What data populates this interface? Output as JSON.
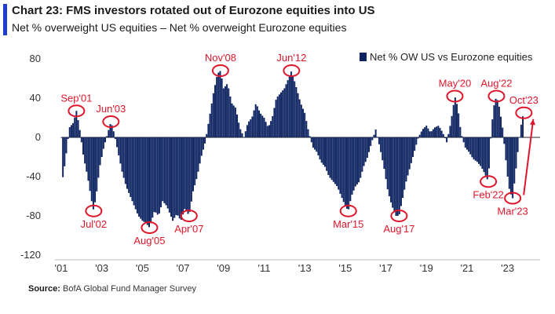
{
  "header": {
    "title": "Chart 23: FMS investors rotated out of Eurozone equities into US",
    "subtitle": "Net % overweight US equities – Net % overweight Eurozone equities"
  },
  "footer": {
    "source_label": "Source:",
    "source_text": "BofA Global Fund Manager Survey"
  },
  "colors": {
    "bar": "#0d2461",
    "accent": "#1f3ecf",
    "annotation": "#e0162b"
  },
  "chart_data": {
    "type": "bar",
    "legend": {
      "label": "Net % OW US vs Eurozone equities",
      "position": "top-right"
    },
    "y_ticks": [
      80,
      40,
      0,
      -40,
      -80,
      -120
    ],
    "ylim": [
      -120,
      80
    ],
    "xlim": [
      2001.0,
      2024.6
    ],
    "x_ticks": [
      {
        "label": "'01",
        "year": 2001
      },
      {
        "label": "'03",
        "year": 2003
      },
      {
        "label": "'05",
        "year": 2005
      },
      {
        "label": "'07",
        "year": 2007
      },
      {
        "label": "'09",
        "year": 2009
      },
      {
        "label": "'11",
        "year": 2011
      },
      {
        "label": "'13",
        "year": 2013
      },
      {
        "label": "'15",
        "year": 2015
      },
      {
        "label": "'17",
        "year": 2017
      },
      {
        "label": "'19",
        "year": 2019
      },
      {
        "label": "'21",
        "year": 2021
      },
      {
        "label": "'23",
        "year": 2023
      }
    ],
    "anchors": [
      [
        2001.0,
        0
      ],
      [
        2001.05,
        -45
      ],
      [
        2001.2,
        -25
      ],
      [
        2001.4,
        10
      ],
      [
        2001.6,
        15
      ],
      [
        2001.75,
        27
      ],
      [
        2001.9,
        10
      ],
      [
        2002.1,
        -20
      ],
      [
        2002.3,
        -40
      ],
      [
        2002.5,
        -65
      ],
      [
        2002.6,
        -75
      ],
      [
        2002.75,
        -55
      ],
      [
        2002.9,
        -30
      ],
      [
        2003.1,
        -10
      ],
      [
        2003.3,
        5
      ],
      [
        2003.45,
        16
      ],
      [
        2003.6,
        5
      ],
      [
        2003.8,
        -15
      ],
      [
        2004.0,
        -35
      ],
      [
        2004.2,
        -50
      ],
      [
        2004.4,
        -60
      ],
      [
        2004.6,
        -70
      ],
      [
        2004.8,
        -80
      ],
      [
        2005.0,
        -85
      ],
      [
        2005.2,
        -88
      ],
      [
        2005.35,
        -92
      ],
      [
        2005.6,
        -75
      ],
      [
        2005.8,
        -80
      ],
      [
        2006.0,
        -65
      ],
      [
        2006.2,
        -70
      ],
      [
        2006.5,
        -85
      ],
      [
        2006.7,
        -78
      ],
      [
        2006.9,
        -85
      ],
      [
        2007.1,
        -72
      ],
      [
        2007.3,
        -80
      ],
      [
        2007.5,
        -55
      ],
      [
        2007.7,
        -40
      ],
      [
        2007.9,
        -20
      ],
      [
        2008.1,
        -5
      ],
      [
        2008.3,
        20
      ],
      [
        2008.5,
        45
      ],
      [
        2008.7,
        65
      ],
      [
        2008.85,
        68
      ],
      [
        2009.0,
        50
      ],
      [
        2009.2,
        55
      ],
      [
        2009.4,
        35
      ],
      [
        2009.6,
        30
      ],
      [
        2009.8,
        10
      ],
      [
        2010.0,
        0
      ],
      [
        2010.2,
        15
      ],
      [
        2010.4,
        20
      ],
      [
        2010.6,
        35
      ],
      [
        2010.8,
        25
      ],
      [
        2011.0,
        20
      ],
      [
        2011.2,
        10
      ],
      [
        2011.4,
        20
      ],
      [
        2011.6,
        40
      ],
      [
        2011.8,
        45
      ],
      [
        2012.0,
        50
      ],
      [
        2012.2,
        60
      ],
      [
        2012.35,
        68
      ],
      [
        2012.6,
        50
      ],
      [
        2012.8,
        35
      ],
      [
        2013.0,
        25
      ],
      [
        2013.2,
        5
      ],
      [
        2013.4,
        -10
      ],
      [
        2013.6,
        -15
      ],
      [
        2013.8,
        -25
      ],
      [
        2014.0,
        -30
      ],
      [
        2014.2,
        -40
      ],
      [
        2014.4,
        -45
      ],
      [
        2014.6,
        -50
      ],
      [
        2014.8,
        -60
      ],
      [
        2015.0,
        -70
      ],
      [
        2015.15,
        -75
      ],
      [
        2015.3,
        -60
      ],
      [
        2015.5,
        -50
      ],
      [
        2015.7,
        -45
      ],
      [
        2015.9,
        -30
      ],
      [
        2016.1,
        -20
      ],
      [
        2016.3,
        -5
      ],
      [
        2016.5,
        8
      ],
      [
        2016.7,
        -10
      ],
      [
        2016.9,
        -30
      ],
      [
        2017.1,
        -55
      ],
      [
        2017.3,
        -70
      ],
      [
        2017.5,
        -80
      ],
      [
        2017.65,
        -80
      ],
      [
        2017.8,
        -65
      ],
      [
        2018.0,
        -45
      ],
      [
        2018.2,
        -30
      ],
      [
        2018.4,
        -15
      ],
      [
        2018.6,
        0
      ],
      [
        2018.8,
        8
      ],
      [
        2019.0,
        12
      ],
      [
        2019.2,
        5
      ],
      [
        2019.4,
        10
      ],
      [
        2019.6,
        12
      ],
      [
        2019.8,
        5
      ],
      [
        2020.0,
        -5
      ],
      [
        2020.2,
        15
      ],
      [
        2020.4,
        42
      ],
      [
        2020.55,
        30
      ],
      [
        2020.7,
        5
      ],
      [
        2020.9,
        -10
      ],
      [
        2021.1,
        -15
      ],
      [
        2021.3,
        -22
      ],
      [
        2021.5,
        -25
      ],
      [
        2021.7,
        -30
      ],
      [
        2021.9,
        -38
      ],
      [
        2022.05,
        -45
      ],
      [
        2022.15,
        -5
      ],
      [
        2022.3,
        30
      ],
      [
        2022.45,
        42
      ],
      [
        2022.6,
        30
      ],
      [
        2022.75,
        10
      ],
      [
        2022.9,
        -20
      ],
      [
        2023.0,
        -40
      ],
      [
        2023.1,
        -55
      ],
      [
        2023.25,
        -62
      ],
      [
        2023.4,
        -35
      ],
      [
        2023.55,
        -5
      ],
      [
        2023.7,
        18
      ],
      [
        2023.8,
        25
      ]
    ],
    "annotations": [
      {
        "label": "Sep'01",
        "x": 2001.75,
        "y": 27
      },
      {
        "label": "Jul'02",
        "x": 2002.6,
        "y": -75
      },
      {
        "label": "Jun'03",
        "x": 2003.45,
        "y": 16
      },
      {
        "label": "Aug'05",
        "x": 2005.35,
        "y": -92
      },
      {
        "label": "Apr'07",
        "x": 2007.3,
        "y": -80
      },
      {
        "label": "Nov'08",
        "x": 2008.85,
        "y": 68
      },
      {
        "label": "Jun'12",
        "x": 2012.35,
        "y": 68
      },
      {
        "label": "Mar'15",
        "x": 2015.15,
        "y": -75
      },
      {
        "label": "Aug'17",
        "x": 2017.65,
        "y": -80
      },
      {
        "label": "May'20",
        "x": 2020.4,
        "y": 42
      },
      {
        "label": "Feb'22",
        "x": 2022.05,
        "y": -45
      },
      {
        "label": "Aug'22",
        "x": 2022.45,
        "y": 42
      },
      {
        "label": "Mar'23",
        "x": 2023.25,
        "y": -62
      },
      {
        "label": "Oct'23",
        "x": 2023.8,
        "y": 25
      }
    ]
  }
}
